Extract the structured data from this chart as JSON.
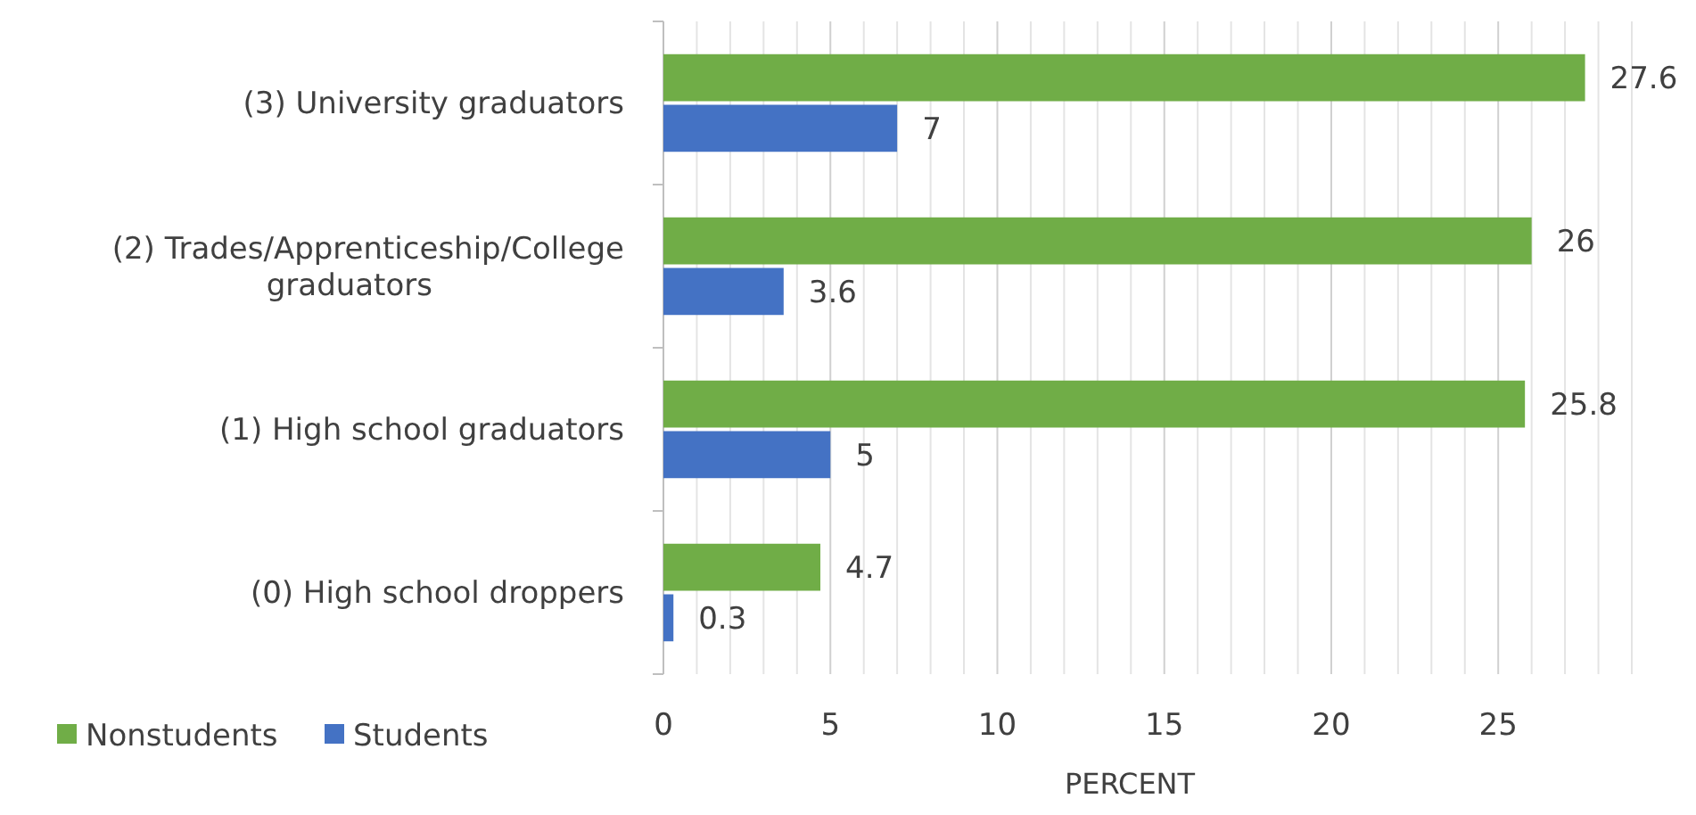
{
  "chart_data": {
    "type": "bar",
    "orientation": "horizontal",
    "xlabel": "PERCENT",
    "categories": [
      "(3) University graduators",
      "(2) Trades/Apprenticeship/College graduators",
      "(1) High school graduators",
      "(0) High school droppers"
    ],
    "series": [
      {
        "name": "Nonstudents",
        "color": "#70ad47",
        "values": [
          27.6,
          26,
          25.8,
          4.7
        ]
      },
      {
        "name": "Students",
        "color": "#4472c4",
        "values": [
          7,
          3.6,
          5,
          0.3
        ]
      }
    ],
    "xlim": [
      0,
      29
    ],
    "xticks": [
      0,
      {
        "value": 1,
        "label": null
      },
      {
        "value": 2,
        "label": null
      },
      {
        "value": 3,
        "label": null
      },
      {
        "value": 4,
        "label": null
      },
      5,
      {
        "value": 6,
        "label": null
      },
      {
        "value": 7,
        "label": null
      },
      {
        "value": 8,
        "label": null
      },
      {
        "value": 9,
        "label": null
      },
      10,
      {
        "value": 11,
        "label": null
      },
      {
        "value": 12,
        "label": null
      },
      {
        "value": 13,
        "label": null
      },
      {
        "value": 14,
        "label": null
      },
      15,
      {
        "value": 16,
        "label": null
      },
      {
        "value": 17,
        "label": null
      },
      {
        "value": 18,
        "label": null
      },
      {
        "value": 19,
        "label": null
      },
      20,
      {
        "value": 21,
        "label": null
      },
      {
        "value": 22,
        "label": null
      },
      {
        "value": 23,
        "label": null
      },
      {
        "value": 24,
        "label": null
      },
      25,
      {
        "value": 26,
        "label": null
      },
      {
        "value": 27,
        "label": null
      },
      {
        "value": 28,
        "label": null
      },
      {
        "value": 29,
        "label": null
      }
    ],
    "grid": "x",
    "data_labels": true,
    "legend": "bottom left"
  }
}
